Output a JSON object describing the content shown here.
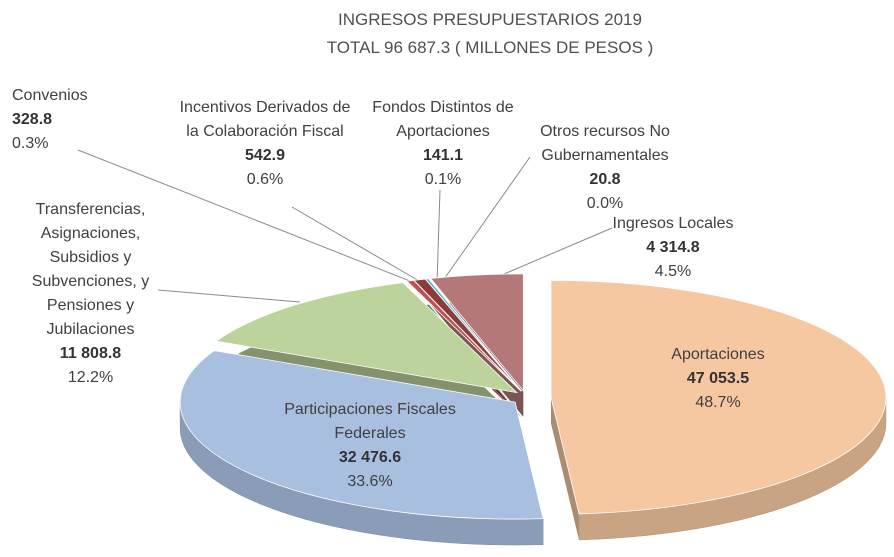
{
  "chart_data": {
    "type": "pie",
    "title": "INGRESOS PRESUPUESTARIOS 2019",
    "subtitle": "TOTAL  96 687.3 ( MILLONES DE PESOS )",
    "categories": [
      "Aportaciones",
      "Participaciones Fiscales Federales",
      "Transferencias, Asignaciones, Subsidios y Subvenciones, y Pensiones y Jubilaciones",
      "Convenios",
      "Incentivos Derivados de la Colaboración Fiscal",
      "Fondos Distintos de Aportaciones",
      "Otros recursos No Gubernamentales",
      "Ingresos Locales"
    ],
    "values": [
      47053.5,
      32476.6,
      11808.8,
      328.8,
      542.9,
      141.1,
      20.8,
      4314.8
    ],
    "value_labels": [
      "47 053.5",
      "32 476.6",
      "11 808.8",
      "328.8",
      "542.9",
      "141.1",
      "20.8",
      "4 314.8"
    ],
    "percents": [
      48.7,
      33.6,
      12.2,
      0.3,
      0.6,
      0.1,
      0.0,
      4.5
    ],
    "percent_labels": [
      "48.7%",
      "33.6%",
      "12.2%",
      "0.3%",
      "0.6%",
      "0.1%",
      "0.0%",
      "4.5%"
    ],
    "colors": [
      "#f5c8a2",
      "#a9bfe0",
      "#bdd39c",
      "#c0504d",
      "#8c3b3b",
      "#4bacc6",
      "#7f9f4d",
      "#b47878"
    ]
  }
}
